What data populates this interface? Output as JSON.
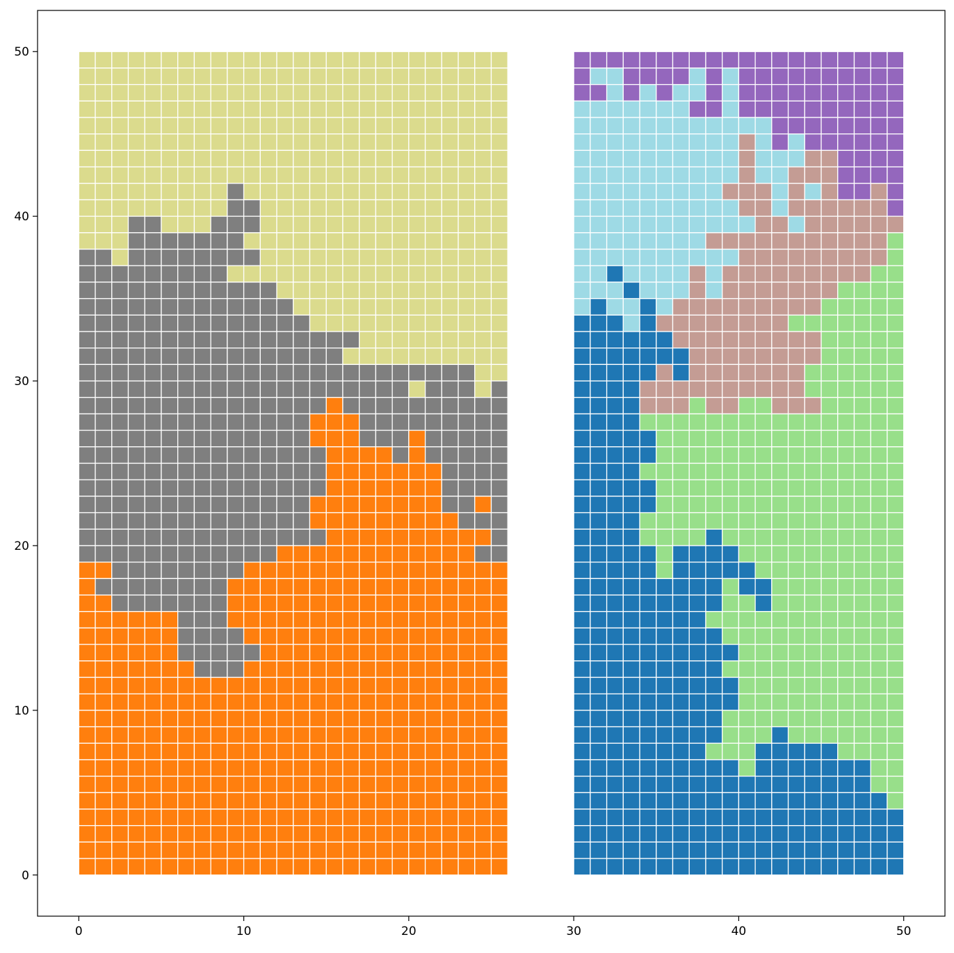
{
  "chart_data": {
    "type": "heatmap",
    "title": "",
    "xlabel": "",
    "ylabel": "",
    "xlim": [
      -2.5,
      52.5
    ],
    "ylim": [
      -2.5,
      52.5
    ],
    "xticks": [
      0,
      10,
      20,
      30,
      40,
      50
    ],
    "yticks": [
      0,
      10,
      20,
      30,
      40,
      50
    ],
    "grid": false,
    "cell_edge_color": "#ffffff",
    "colors": {
      "Y": "#dbdb8d",
      "G": "#7f7f7f",
      "O": "#ff7f0e",
      "P": "#9467bd",
      "C": "#9edae5",
      "R": "#c49c94",
      "L": "#98df8a",
      "B": "#1f77b4"
    },
    "blocks": [
      {
        "x0": 0,
        "y0": 0,
        "cols": 26,
        "rows_top_to_bottom": [
          "YYYYYYYYYYYYYYYYYYYYYYYYYY",
          "YYYYYYYYYYYYYYYYYYYYYYYYYY",
          "YYYYYYYYYYYYYYYYYYYYYYYYYY",
          "YYYYYYYYYYYYYYYYYYYYYYYYYY",
          "YYYYYYYYYYYYYYYYYYYYYYYYYY",
          "YYYYYYYYYYYYYYYYYYYYYYYYYY",
          "YYYYYYYYYYYYYYYYYYYYYYYYYY",
          "YYYYYYYYYYYYYYYYYYYYYYYYYY",
          "YYYYYYYYYGYYYYYYYYYYYYYYYY",
          "YYYYYYYYYGGYYYYYYYYYYYYYYY",
          "YYYGGYYYGGGYYYYYYYYYYYYYYY",
          "YYYGGGGGGGYYYYYYYYYYYYYYYY",
          "GGYGGGGGGGGYYYYYYYYYYYYYYY",
          "GGGGGGGGGYYYYYYYYYYYYYYYYY",
          "GGGGGGGGGGGGYYYYYYYYYYYYYY",
          "GGGGGGGGGGGGGYYYYYYYYYYYYY",
          "GGGGGGGGGGGGGGYYYYYYYYYYYY",
          "GGGGGGGGGGGGGGGGGYYYYYYYYY",
          "GGGGGGGGGGGGGGGGYYYYYYYYYY",
          "GGGGGGGGGGGGGGGGGGGGGGGGYY",
          "GGGGGGGGGGGGGGGGGGGGYGGGYG",
          "GGGGGGGGGGGGGGGOGGGGGGGGGG",
          "GGGGGGGGGGGGGGOOOGGGGGGGGG",
          "GGGGGGGGGGGGGGOOOGGGOGGGGG",
          "GGGGGGGGGGGGGGGOOOOGOGGGGG",
          "GGGGGGGGGGGGGGGOOOOOOOGGGG",
          "GGGGGGGGGGGGGGGOOOOOOOGGGG",
          "GGGGGGGGGGGGGGOOOOOOOOGGOG",
          "GGGGGGGGGGGGGGOOOOOOOOOGGG",
          "GGGGGGGGGGGGGGGOOOOOOOOOOG",
          "GGGGGGGGGGGGOOOOOOOOOOOOGG",
          "OOGGGGGGGGOOOOOOOOOOOOOOOO",
          "OGGGGGGGGOOOOOOOOOOOOOOOOO",
          "OOGGGGGGGOOOOOOOOOOOOOOOOO",
          "OOOOOOGGGOOOOOOOOOOOOOOOOO",
          "OOOOOOGGGGOOOOOOOOOOOOOOOO",
          "OOOOOOGGGGGOOOOOOOOOOOOOOO",
          "OOOOOOOGGGOOOOOOOOOOOOOOOO",
          "OOOOOOOOOOOOOOOOOOOOOOOOOO",
          "OOOOOOOOOOOOOOOOOOOOOOOOOO",
          "OOOOOOOOOOOOOOOOOOOOOOOOOO",
          "OOOOOOOOOOOOOOOOOOOOOOOOOO",
          "OOOOOOOOOOOOOOOOOOOOOOOOOO",
          "OOOOOOOOOOOOOOOOOOOOOOOOOO",
          "OOOOOOOOOOOOOOOOOOOOOOOOOO",
          "OOOOOOOOOOOOOOOOOOOOOOOOOO",
          "OOOOOOOOOOOOOOOOOOOOOOOOOO",
          "OOOOOOOOOOOOOOOOOOOOOOOOOO",
          "OOOOOOOOOOOOOOOOOOOOOOOOOO",
          "OOOOOOOOOOOOOOOOOOOOOOOOOO"
        ]
      },
      {
        "x0": 30,
        "y0": 0,
        "cols": 20,
        "rows_top_to_bottom": [
          "PPPPPPPPPPPPPPPPPPPP",
          "PCCPPPPCPCPPPPPPPPPP",
          "PPCPCPCCPCPPPPPPPPPP",
          "CCCCCCCPPCPPPPPPPPPP",
          "CCCCCCCCCCCCPPPPPPPP",
          "CCCCCCCCCCRCPCPPPPPP",
          "CCCCCCCCCCRCCCRRPPPP",
          "CCCCCCCCCCRCCRRRPPPP",
          "CCCCCCCCCRRRCRCRPPRP",
          "CCCCCCCCCCRRCRRRRRRP",
          "CCCCCCCCCCCRRCRRRRRR",
          "CCCCCCCCRRRRRRRRRRRL",
          "CCCCCCCCCCRRRRRRRRRL",
          "CCBCCCCRCRRRRRRRRRLL",
          "CCCBCCCRCRRRRRRRLLLL",
          "CBCCBCRRRRRRRRRLLLLL",
          "BBBCBRRRRRRRRLLLLLLL",
          "BBBBBBRRRRRRRRRLLLLL",
          "BBBBBBBRRRRRRRRLLLLL",
          "BBBBBRBRRRRRRRLLLLLL",
          "BBBBRRRRRRRRRRLLLLLL",
          "BBBBRRRLRRLLRRRLLLLL",
          "BBBBLLLLLLLLLLLLLLLL",
          "BBBBBLLLLLLLLLLLLLLL",
          "BBBBBLLLLLLLLLLLLLLL",
          "BBBBLLLLLLLLLLLLLLLL",
          "BBBBBLLLLLLLLLLLLLLL",
          "BBBBBLLLLLLLLLLLLLLL",
          "BBBBLLLLLLLLLLLLLLLL",
          "BBBBLLLLBLLLLLLLLLLL",
          "BBBBBLBBBBLLLLLLLLLL",
          "BBBBBLBBBBBLLLLLLLLL",
          "BBBBBBBBBLBBLLLLLLLL",
          "BBBBBBBBBLLBLLLLLLLL",
          "BBBBBBBBLLLLLLLLLLLL",
          "BBBBBBBBBLLLLLLLLLLL",
          "BBBBBBBBBBLLLLLLLLLL",
          "BBBBBBBBBLLLLLLLLLLL",
          "BBBBBBBBBBLLLLLLLLLL",
          "BBBBBBBBBBLLLLLLLLLL",
          "BBBBBBBBBLLLLLLLLLLL",
          "BBBBBBBBBLLLBLLLLLLL",
          "BBBBBBBBLLLBBBBBLLLL",
          "BBBBBBBBBBLBBBBBBBLL",
          "BBBBBBBBBBBBBBBBBBLL",
          "BBBBBBBBBBBBBBBBBBBL",
          "BBBBBBBBBBBBBBBBBBBB",
          "BBBBBBBBBBBBBBBBBBBB",
          "BBBBBBBBBBBBBBBBBBBB",
          "BBBBBBBBBBBBBBBBBBBB"
        ]
      }
    ]
  }
}
